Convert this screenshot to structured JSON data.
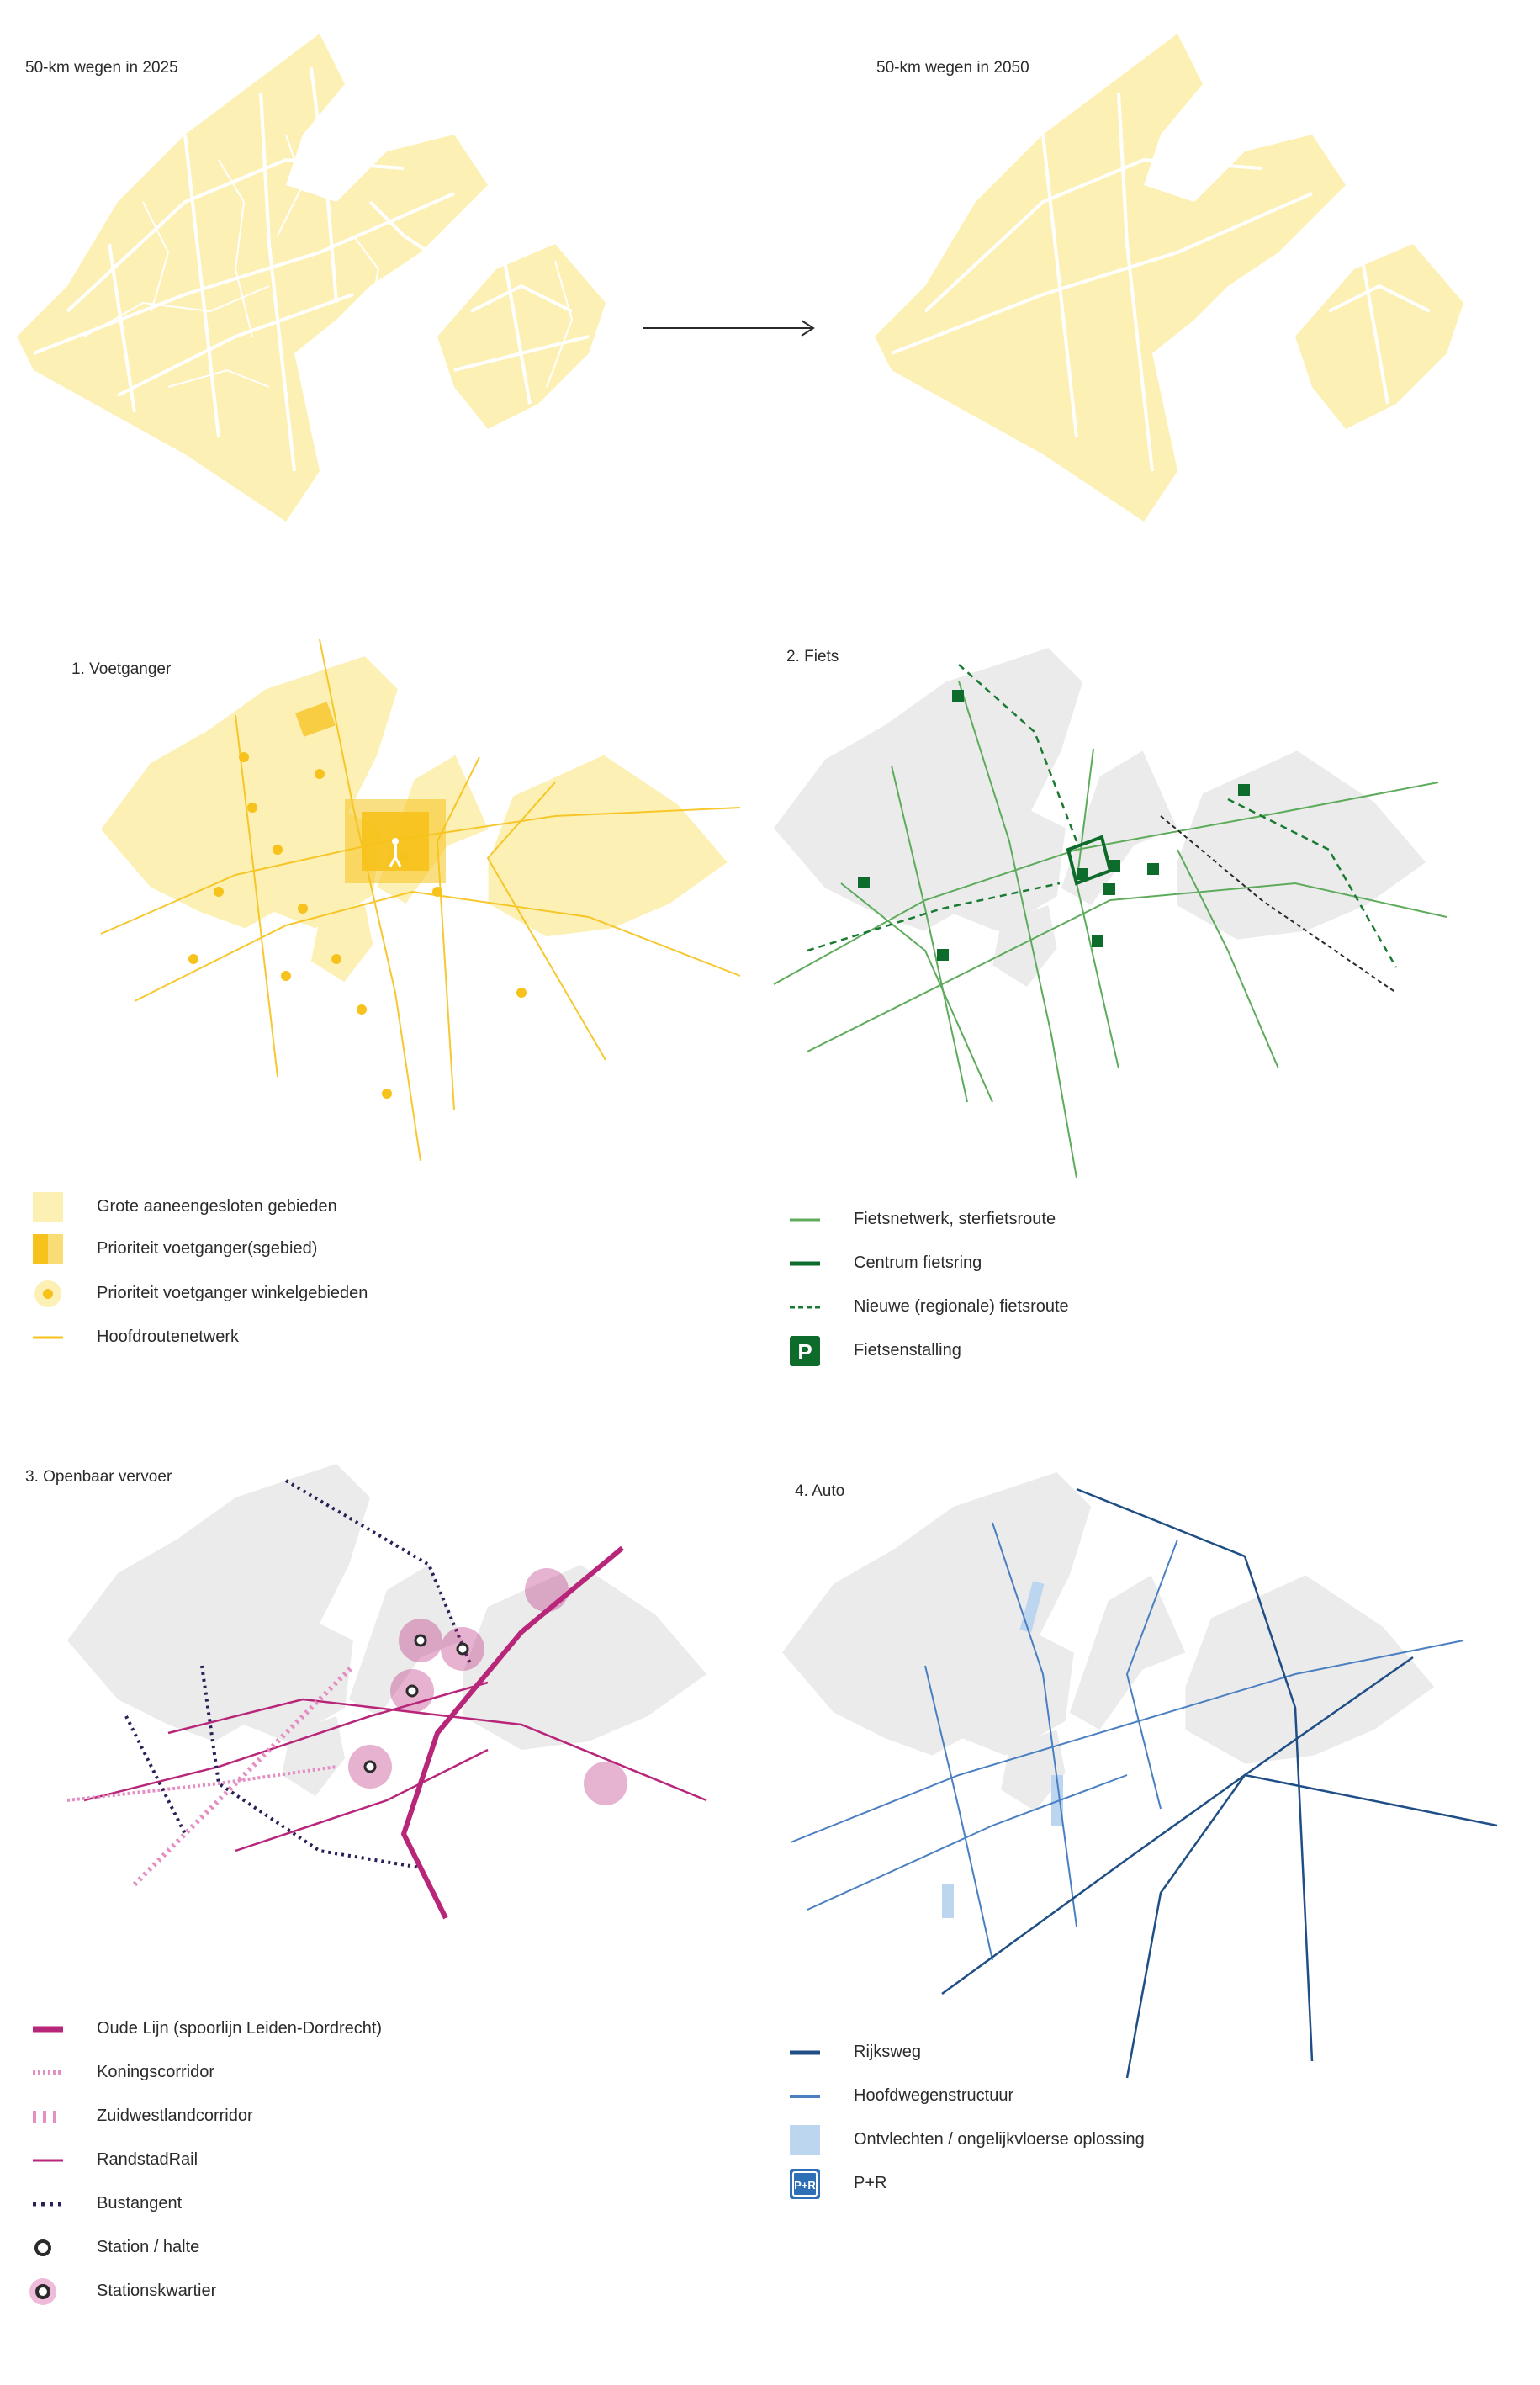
{
  "top": {
    "label_2025": "50-km wegen in 2025",
    "label_2050": "50-km wegen in 2050"
  },
  "panels": {
    "voetganger": {
      "title": "1. Voetganger",
      "legend": [
        {
          "label": "Grote aaneengesloten gebieden",
          "icon": "yellow-area-icon"
        },
        {
          "label": "Prioriteit voetganger(sgebied)",
          "icon": "yellow-priority-block-icon"
        },
        {
          "label": "Prioriteit voetganger winkelgebieden",
          "icon": "heart-circle-icon"
        },
        {
          "label": "Hoofdroutenetwerk",
          "icon": "yellow-line-icon"
        }
      ]
    },
    "fiets": {
      "title": "2. Fiets",
      "legend": [
        {
          "label": "Fietsnetwerk, sterfietsroute",
          "icon": "light-green-line-icon"
        },
        {
          "label": "Centrum fietsring",
          "icon": "dark-green-line-icon"
        },
        {
          "label": "Nieuwe (regionale) fietsroute",
          "icon": "green-dashed-line-icon"
        },
        {
          "label": "Fietsenstalling",
          "icon": "parking-p-icon"
        }
      ]
    },
    "ov": {
      "title": "3. Openbaar vervoer",
      "legend": [
        {
          "label": "Oude Lijn (spoorlijn Leiden-Dordrecht)",
          "icon": "thick-magenta-line-icon"
        },
        {
          "label": "Koningscorridor",
          "icon": "pink-dotted-line-icon"
        },
        {
          "label": "Zuidwestlandcorridor",
          "icon": "pink-bars-icon"
        },
        {
          "label": "RandstadRail",
          "icon": "magenta-line-icon"
        },
        {
          "label": "Bustangent",
          "icon": "navy-dotted-line-icon"
        },
        {
          "label": "Station / halte",
          "icon": "station-ring-icon"
        },
        {
          "label": "Stationskwartier",
          "icon": "station-district-icon"
        }
      ]
    },
    "auto": {
      "title": "4. Auto",
      "legend": [
        {
          "label": "Rijksweg",
          "icon": "dark-blue-line-icon"
        },
        {
          "label": "Hoofdwegenstructuur",
          "icon": "blue-line-icon"
        },
        {
          "label": "Ontvlechten / ongelijkvloerse oplossing",
          "icon": "light-blue-area-icon"
        },
        {
          "label": "P+R",
          "icon": "park-and-ride-icon"
        }
      ],
      "pr_badge": "P+R"
    }
  },
  "colors": {
    "yellow_area": "#fdf0b4",
    "yellow_strong": "#f6c21b",
    "grey_area": "#ebebeb",
    "green_light": "#5dab5b",
    "green_dark": "#0d6b2b",
    "magenta": "#b8267a",
    "pink": "#e58ec2",
    "navy": "#2b1f57",
    "blue_dark": "#1f4f86",
    "blue": "#4a7fc1",
    "blue_light": "#bcd6ef"
  }
}
